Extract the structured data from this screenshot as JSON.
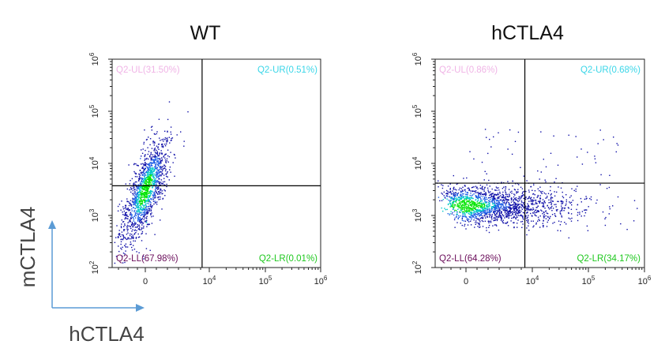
{
  "axis_key": {
    "y_label": "mCTLA4",
    "x_label": "hCTLA4",
    "arrow_color": "#5b9bd5"
  },
  "chart_data": [
    {
      "type": "scatter",
      "title": "WT",
      "xlabel": "hCTLA4",
      "ylabel": "mCTLA4",
      "x_ticks": [
        "0",
        "10^4",
        "10^5",
        "10^6"
      ],
      "y_ticks": [
        "10^2",
        "10^3",
        "10^4",
        "10^5",
        "10^6"
      ],
      "gate": {
        "x_log": 3.55,
        "y_log": 3.57
      },
      "quadrants": [
        {
          "name": "Q2-UL",
          "label": "Q2-UL(31.50%)",
          "percent": 31.5,
          "color": "#f0b4e6"
        },
        {
          "name": "Q2-UR",
          "label": "Q2-UR(0.51%)",
          "percent": 0.51,
          "color": "#3ad6e8"
        },
        {
          "name": "Q2-LL",
          "label": "Q2-LL(67.98%)",
          "percent": 67.98,
          "color": "#6a0d5a"
        },
        {
          "name": "Q2-LR",
          "label": "Q2-LR(0.01%)",
          "percent": 0.01,
          "color": "#1ec81e"
        }
      ],
      "population": {
        "center_x_log": 0.0,
        "center_y_log": 3.5,
        "shape": "vertical elongated cluster"
      }
    },
    {
      "type": "scatter",
      "title": "hCTLA4",
      "xlabel": "hCTLA4",
      "ylabel": "mCTLA4",
      "x_ticks": [
        "0",
        "10^4",
        "10^5",
        "10^6"
      ],
      "y_ticks": [
        "10^2",
        "10^3",
        "10^4",
        "10^5",
        "10^6"
      ],
      "gate": {
        "x_log": 3.55,
        "y_log": 3.62
      },
      "quadrants": [
        {
          "name": "Q2-UL",
          "label": "Q2-UL(0.86%)",
          "percent": 0.86,
          "color": "#f0b4e6"
        },
        {
          "name": "Q2-UR",
          "label": "Q2-UR(0.68%)",
          "percent": 0.68,
          "color": "#3ad6e8"
        },
        {
          "name": "Q2-LL",
          "label": "Q2-LL(64.28%)",
          "percent": 64.28,
          "color": "#6a0d5a"
        },
        {
          "name": "Q2-LR",
          "label": "Q2-LR(34.17%)",
          "percent": 34.17,
          "color": "#1ec81e"
        }
      ],
      "population": {
        "center_x_log": 0.0,
        "center_y_log": 3.2,
        "shape": "horizontal elongated cluster"
      }
    }
  ]
}
